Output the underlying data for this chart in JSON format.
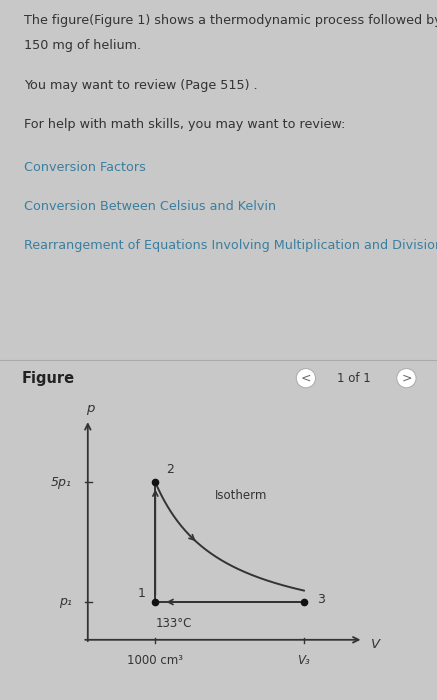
{
  "page_bg": "#c8c8c8",
  "text_panel_bg": "#dce8e8",
  "figure_panel_bg": "#d8d8d8",
  "title_text1": "The figure(Figure 1) shows a thermodynamic process followed by",
  "title_text2": "150 mg of helium.",
  "body_line1": "You may want to review (Page 515) .",
  "body_line2": "For help with math skills, you may want to review:",
  "link_lines": [
    "Conversion Factors",
    "Conversion Between Celsius and Kelvin",
    "Rearrangement of Equations Involving Multiplication and Division"
  ],
  "text_color": "#333333",
  "link_color": "#3a7fa0",
  "figure_label": "Figure",
  "nav_text": "1 of 1",
  "p_label": "p",
  "v_label": "V",
  "y_label_low": "p₁",
  "y_label_high": "5p₁",
  "x_label_1": "1000 cm³",
  "x_label_3": "V₃",
  "point_labels": [
    "1",
    "2",
    "3"
  ],
  "isotherm_label": "Isotherm",
  "temp_label": "133°C",
  "axis_color": "#333333",
  "curve_color": "#333333",
  "V1": 0.25,
  "V3": 0.8,
  "p1": 0.18,
  "p2": 0.75
}
